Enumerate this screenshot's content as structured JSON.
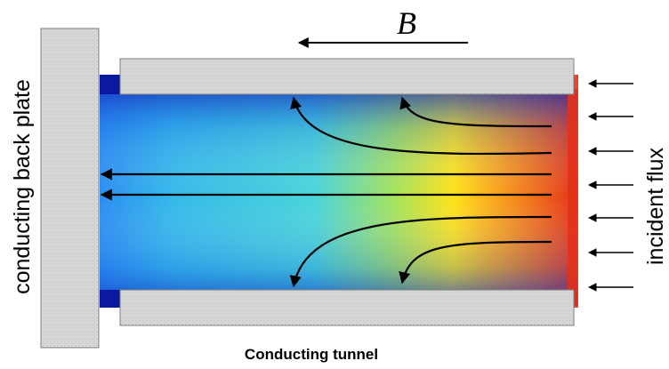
{
  "labels": {
    "field": "B",
    "back_plate": "conducting back plate",
    "incident_flux": "incident flux",
    "tunnel": "Conducting tunnel"
  },
  "colors": {
    "plate_fill": "#d6d6d6",
    "plate_stroke": "#7f7f7f",
    "edge_dark_blue": "#0a1a9e",
    "gradient_left": "#2a8cf0",
    "gradient_mid": "#3fd0e0",
    "gradient_green": "#9fe060",
    "gradient_yellow": "#ffe21a",
    "gradient_orange": "#f58a1a",
    "gradient_red": "#e8301a",
    "arrow": "#000000"
  }
}
